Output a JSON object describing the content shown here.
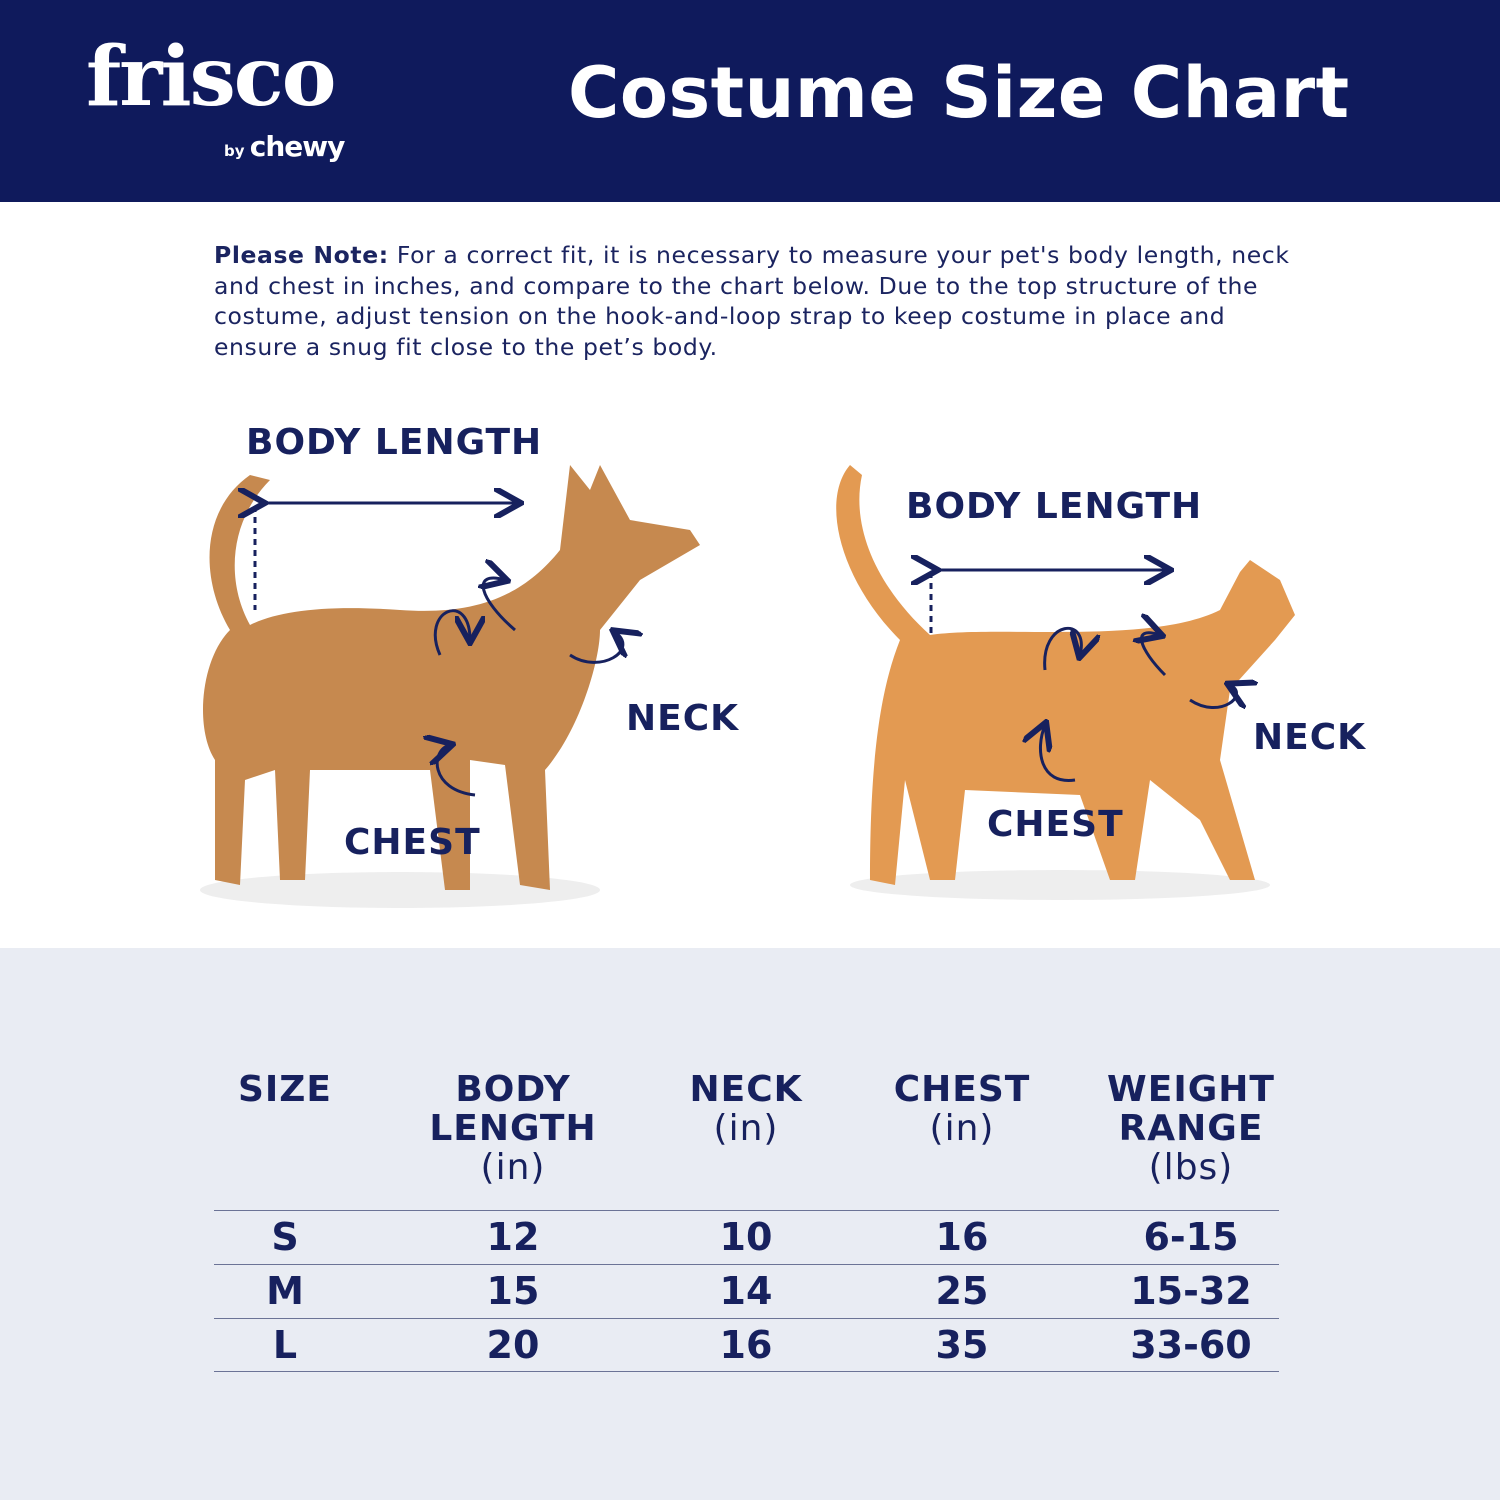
{
  "header": {
    "logo": "frisco",
    "logo_by": "by",
    "logo_brand": "chewy",
    "title": "Costume Size Chart",
    "bg_color": "#0f1a5c"
  },
  "note": {
    "label": "Please Note:",
    "text": " For a correct fit, it is necessary to measure your pet's body length, neck and chest in inches, and compare to the chart below. Due to the top structure of the costume, adjust tension on the hook-and-loop strap to keep costume in place and ensure a snug fit close to the pet’s body."
  },
  "dog": {
    "body_length": "BODY LENGTH",
    "neck": "NECK",
    "chest": "CHEST"
  },
  "cat": {
    "body_length": "BODY LENGTH",
    "neck": "NECK",
    "chest": "CHEST"
  },
  "table": {
    "headers": [
      {
        "title": "SIZE",
        "unit": ""
      },
      {
        "title": "BODY LENGTH",
        "unit": "(in)"
      },
      {
        "title": "NECK",
        "unit": "(in)"
      },
      {
        "title": "CHEST",
        "unit": "(in)"
      },
      {
        "title": "WEIGHT RANGE",
        "unit": "(lbs)"
      }
    ],
    "rows": [
      [
        "S",
        "12",
        "10",
        "16",
        "6-15"
      ],
      [
        "M",
        "15",
        "14",
        "25",
        "15-32"
      ],
      [
        "L",
        "20",
        "16",
        "35",
        "33-60"
      ]
    ]
  }
}
